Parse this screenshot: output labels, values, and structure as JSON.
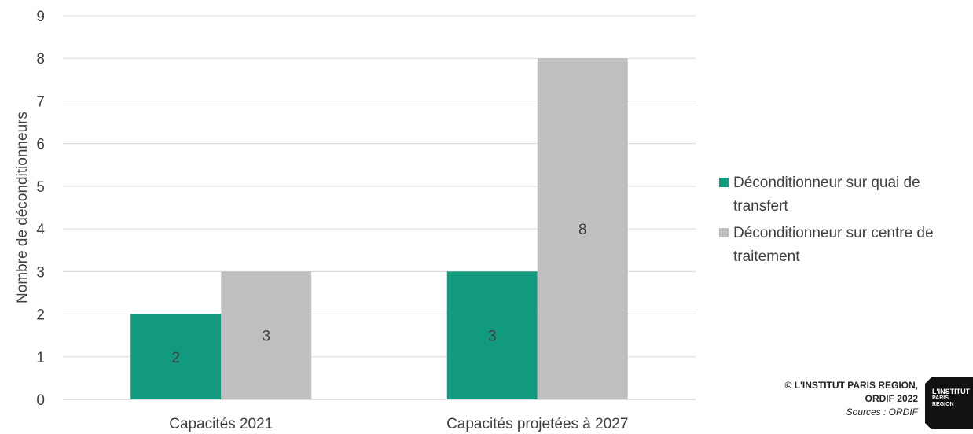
{
  "chart_data": {
    "type": "bar",
    "categories": [
      "Capacités 2021",
      "Capacités projetées à 2027"
    ],
    "series": [
      {
        "name": "Déconditionneur sur quai de transfert",
        "values": [
          2,
          3
        ],
        "color": "#129a7e"
      },
      {
        "name": "Déconditionneur sur centre de traitement",
        "values": [
          3,
          8
        ],
        "color": "#bfbfbf"
      }
    ],
    "ylabel": "Nombre de déconditionneurs",
    "xlabel": "",
    "ylim": [
      0,
      9
    ],
    "yticks": [
      0,
      1,
      2,
      3,
      4,
      5,
      6,
      7,
      8,
      9
    ],
    "grid": true,
    "legend_position": "right"
  },
  "legend": {
    "item1_line1": "Déconditionneur sur quai de",
    "item1_line2": "transfert",
    "item2_line1": "Déconditionneur sur centre de",
    "item2_line2": "traitement"
  },
  "credits": {
    "line1": "© L'INSTITUT PARIS REGION,",
    "line2": "ORDIF 2022",
    "line3": "Sources : ORDIF"
  },
  "logo": {
    "line1": "L'INSTITUT",
    "line2": "PARIS",
    "line3": "REGION"
  }
}
